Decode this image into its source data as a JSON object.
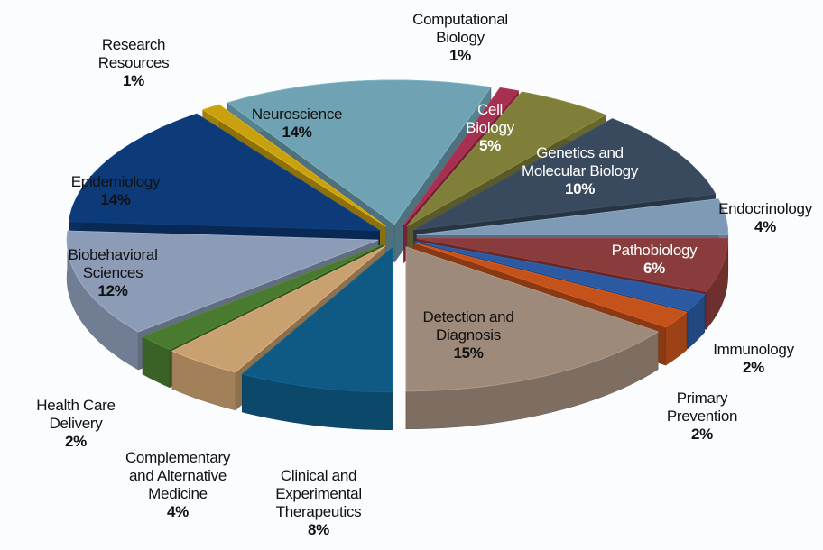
{
  "chart_data": {
    "type": "pie3d",
    "categories": [
      "Computational Biology",
      "Cell Biology",
      "Genetics and Molecular Biology",
      "Endocrinology",
      "Pathobiology",
      "Immunology",
      "Primary Prevention",
      "Detection and Diagnosis",
      "Clinical and Experimental Therapeutics",
      "Complementary and Alternative Medicine",
      "Health Care Delivery",
      "Biobehavioral Sciences",
      "Epidemiology",
      "Research Resources",
      "Neuroscience"
    ],
    "values": [
      1,
      5,
      10,
      4,
      6,
      2,
      2,
      15,
      8,
      4,
      2,
      12,
      14,
      1,
      14
    ],
    "value_labels": [
      "1%",
      "5%",
      "10%",
      "4%",
      "6%",
      "2%",
      "2%",
      "15%",
      "8%",
      "4%",
      "2%",
      "12%",
      "14%",
      "1%",
      "14%"
    ],
    "colors": [
      "#a5304f",
      "#7f7f3a",
      "#3a4a5e",
      "#7e9ab4",
      "#8a3b3b",
      "#2b5aa3",
      "#c4521b",
      "#9d8a7b",
      "#0e5a84",
      "#c9a070",
      "#4a7a30",
      "#8c9cb6",
      "#0d3a78",
      "#c8a010",
      "#6fa2b2"
    ]
  }
}
